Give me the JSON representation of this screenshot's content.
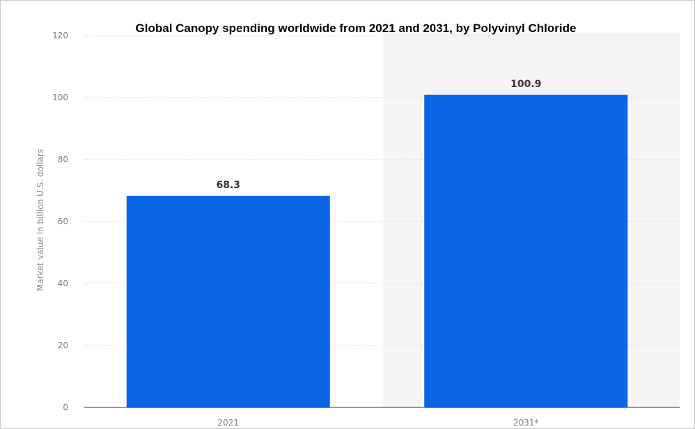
{
  "chart_data": {
    "type": "bar",
    "title": "Global Canopy spending worldwide from 2021 and 2031, by Polyvinyl Chloride",
    "ylabel": "Market value in billion U.S. dollars",
    "xlabel": "",
    "categories": [
      "2021",
      "2031*"
    ],
    "values": [
      68.3,
      100.9
    ],
    "value_labels": [
      "68.3",
      "100.9"
    ],
    "ylim": [
      0,
      120
    ],
    "yticks": [
      "0",
      "20",
      "40",
      "60",
      "80",
      "100",
      "120"
    ],
    "grid": true,
    "forecast_shading": "2031*",
    "colors": {
      "bar": "#0a64e6",
      "forecast_band": "#f5f5f5",
      "grid": "#d9d9d9",
      "axis": "#333333"
    }
  }
}
